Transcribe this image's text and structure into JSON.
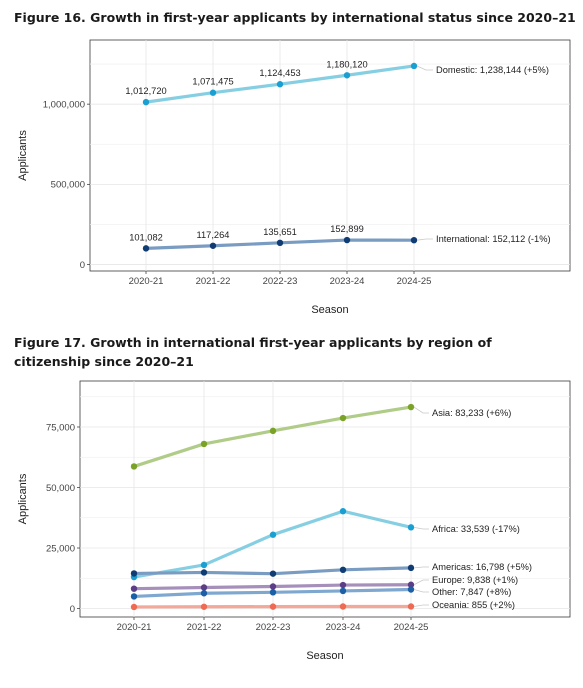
{
  "figure16": {
    "title": "Figure 16. Growth in first-year applicants by international status since 2020–21"
  },
  "figure17": {
    "title": "Figure 17. Growth in international first-year applicants by region of citizenship since 2020–21"
  },
  "chart_data": [
    {
      "type": "line",
      "title": "Figure 16. Growth in first-year applicants by international status since 2020–21",
      "xlabel": "Season",
      "ylabel": "Applicants",
      "categories": [
        "2020-21",
        "2021-22",
        "2022-23",
        "2023-24",
        "2024-25"
      ],
      "ylim": [
        -40000,
        1400000
      ],
      "yticks": [
        0,
        500000,
        1000000
      ],
      "ytick_labels": [
        "0",
        "500,000",
        "1,000,000"
      ],
      "grid": true,
      "series": [
        {
          "name": "Domestic",
          "values": [
            1012720,
            1071475,
            1124453,
            1180120,
            1238144
          ],
          "point_labels": [
            "1,012,720",
            "1,071,475",
            "1,124,453",
            "1,180,120"
          ],
          "end_label": "Domestic: 1,238,144 (+5%)",
          "line_color": "#86cfe3",
          "point_color": "#1a9fd2"
        },
        {
          "name": "International",
          "values": [
            101082,
            117264,
            135651,
            152899,
            152112
          ],
          "point_labels": [
            "101,082",
            "117,264",
            "135,651",
            "152,899"
          ],
          "end_label": "International: 152,112 (-1%)",
          "line_color": "#7a9cc2",
          "point_color": "#0f3c73"
        }
      ]
    },
    {
      "type": "line",
      "title": "Figure 17. Growth in international first-year applicants by region of citizenship since 2020–21",
      "xlabel": "Season",
      "ylabel": "Applicants",
      "categories": [
        "2020-21",
        "2021-22",
        "2022-23",
        "2023-24",
        "2024-25"
      ],
      "ylim": [
        -3500,
        94000
      ],
      "yticks": [
        0,
        25000,
        50000,
        75000
      ],
      "ytick_labels": [
        "0",
        "25,000",
        "50,000",
        "75,000"
      ],
      "grid": true,
      "series": [
        {
          "name": "Asia",
          "values": [
            58700,
            68000,
            73400,
            78700,
            83233
          ],
          "end_label": "Asia: 83,233 (+6%)",
          "line_color": "#b0cc88",
          "point_color": "#79a226"
        },
        {
          "name": "Africa",
          "values": [
            13000,
            18000,
            30500,
            40200,
            33539
          ],
          "end_label": "Africa: 33,539 (-17%)",
          "line_color": "#86cfe3",
          "point_color": "#1a9fd2"
        },
        {
          "name": "Americas",
          "values": [
            14500,
            14900,
            14400,
            16000,
            16798
          ],
          "end_label": "Americas: 16,798 (+5%)",
          "line_color": "#7a9cc2",
          "point_color": "#0f3c73"
        },
        {
          "name": "Europe",
          "values": [
            8200,
            8700,
            9100,
            9700,
            9838
          ],
          "end_label": "Europe: 9,838 (+1%)",
          "line_color": "#a690bb",
          "point_color": "#5b3e86"
        },
        {
          "name": "Other",
          "values": [
            5000,
            6300,
            6700,
            7270,
            7847
          ],
          "end_label": "Other: 7,847 (+8%)",
          "line_color": "#7fa8d0",
          "point_color": "#1b5fa6"
        },
        {
          "name": "Oceania",
          "values": [
            650,
            720,
            790,
            838,
            855
          ],
          "end_label": "Oceania: 855 (+2%)",
          "line_color": "#f4a89a",
          "point_color": "#ee6a52"
        }
      ]
    }
  ]
}
